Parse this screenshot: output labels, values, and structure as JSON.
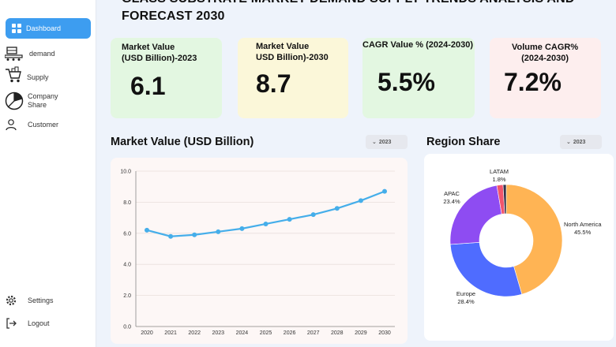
{
  "header": {
    "title_line1": "GLASS SUBSTRATE MARKET DEMAND SUPPLY TRENDS ANALYSIS AND",
    "title_line2": "FORECAST 2030"
  },
  "sidebar": {
    "items": [
      {
        "label": "Dashboard",
        "icon": "grid-icon"
      },
      {
        "label": "demand",
        "icon": "conveyor-icon"
      },
      {
        "label": "Supply",
        "icon": "cart-icon"
      },
      {
        "label": "Company\nShare",
        "icon": "pie-chart-icon"
      },
      {
        "label": "Customer",
        "icon": "user-icon"
      },
      {
        "label": "Settings",
        "icon": "gear-icon"
      },
      {
        "label": "Logout",
        "icon": "logout-icon"
      }
    ]
  },
  "cards": [
    {
      "label": "Market Value\n(USD Billion)-2023",
      "value": "6.1",
      "color": "#e3f7e1"
    },
    {
      "label": "Market Value\nUSD Billion)-2030",
      "value": "8.7",
      "color": "#fbf7d9"
    },
    {
      "label": "CAGR  Value % (2024-2030)",
      "value": "5.5%",
      "color": "#e3f7e1"
    },
    {
      "label": "Volume CAGR%\n(2024-2030)",
      "value": "7.2%",
      "color": "#fdeeee"
    }
  ],
  "market_section": {
    "title": "Market Value (USD Billion)",
    "year": "2023"
  },
  "region_section": {
    "title": "Region Share",
    "year": "2023"
  },
  "chart_data": [
    {
      "type": "line",
      "x": [
        "2020",
        "2021",
        "2022",
        "2023",
        "2024",
        "2025",
        "2026",
        "2027",
        "2028",
        "2029",
        "2030"
      ],
      "series": [
        {
          "values": [
            6.2,
            5.8,
            5.9,
            6.1,
            6.3,
            6.6,
            6.9,
            7.2,
            7.6,
            8.1,
            8.7
          ],
          "color": "#45aeea"
        }
      ],
      "ylim": [
        0,
        10
      ],
      "yticks": [
        "0.0",
        "2.0",
        "4.0",
        "6.0",
        "8.0",
        "10.0"
      ],
      "grid": true
    },
    {
      "type": "pie",
      "donut": true,
      "slices": [
        {
          "label": "North America",
          "value": 45.5,
          "pct": "45.5%",
          "color": "#ffb454"
        },
        {
          "label": "Europe",
          "value": 28.4,
          "pct": "28.4%",
          "color": "#4f6cff"
        },
        {
          "label": "APAC",
          "value": 23.4,
          "pct": "23.4%",
          "color": "#8e4cf2"
        },
        {
          "label": "LATAM",
          "value": 1.8,
          "pct": "1.8%",
          "color": "#f2556c"
        },
        {
          "label": "",
          "value": 0.9,
          "pct": "",
          "color": "#33334a"
        }
      ]
    }
  ]
}
